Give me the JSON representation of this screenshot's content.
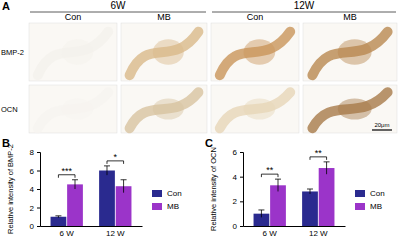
{
  "panel_a": {
    "label": "A",
    "groups": [
      "6W",
      "12W"
    ],
    "columns": [
      "Con",
      "MB",
      "Con",
      "MB"
    ],
    "rows": [
      "BMP-2",
      "OCN"
    ],
    "scale_bar": "20μm"
  },
  "chart_data": [
    {
      "type": "bar",
      "panel_label": "B",
      "y_label": "Relative intensity of BMP-2",
      "categories": [
        "6 W",
        "12 W"
      ],
      "series": [
        {
          "name": "Con",
          "color": "#2a2a8f",
          "values": [
            1.0,
            6.0
          ],
          "errors": [
            0.1,
            0.5
          ]
        },
        {
          "name": "MB",
          "color": "#9b34c9",
          "values": [
            4.5,
            4.3
          ],
          "errors": [
            0.5,
            0.7
          ]
        }
      ],
      "annotations": [
        "***",
        "*"
      ],
      "ylim": [
        0,
        8
      ],
      "yticks": [
        0,
        2,
        4,
        6,
        8
      ],
      "legend": "right"
    },
    {
      "type": "bar",
      "panel_label": "C",
      "y_label": "Relative intensity of OCN",
      "categories": [
        "6 W",
        "12 W"
      ],
      "series": [
        {
          "name": "Con",
          "color": "#2a2a8f",
          "values": [
            1.0,
            2.8
          ],
          "errors": [
            0.3,
            0.2
          ]
        },
        {
          "name": "MB",
          "color": "#9b34c9",
          "values": [
            3.3,
            4.7
          ],
          "errors": [
            0.5,
            0.5
          ]
        }
      ],
      "annotations": [
        "**",
        "**"
      ],
      "ylim": [
        0,
        6
      ],
      "yticks": [
        0,
        2,
        4,
        6
      ],
      "legend": "right"
    }
  ]
}
